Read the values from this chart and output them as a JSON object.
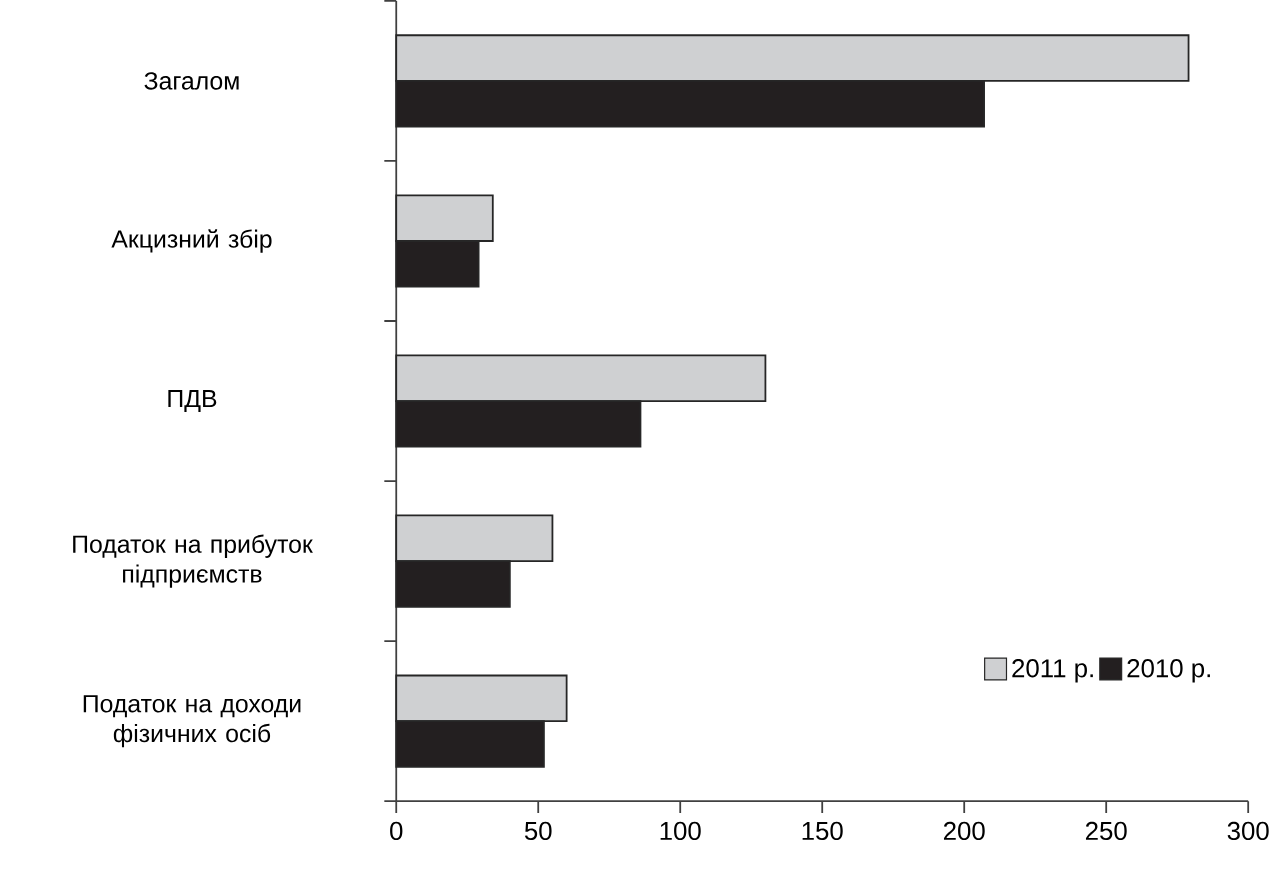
{
  "chart_data": {
    "type": "bar",
    "orientation": "horizontal",
    "categories": [
      "Загалом",
      "Акцизний збір",
      "ПДВ",
      "Податок на прибуток підприємств",
      "Податок на доходи фізичних осіб"
    ],
    "series": [
      {
        "name": "2011 р.",
        "color": "#cfd0d2",
        "values": [
          279,
          34,
          130,
          55,
          60
        ]
      },
      {
        "name": "2010 р.",
        "color": "#231f20",
        "values": [
          207,
          29,
          86,
          40,
          52
        ]
      }
    ],
    "xlim": [
      0,
      300
    ],
    "xticks": [
      0,
      50,
      100,
      150,
      200,
      250,
      300
    ],
    "legend": "bottom right"
  }
}
